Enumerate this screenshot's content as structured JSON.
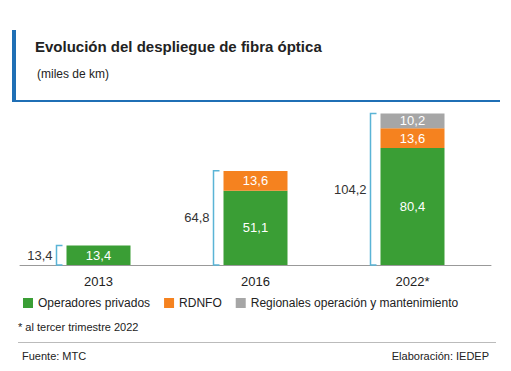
{
  "chart_data": {
    "type": "bar",
    "title": "Evolución del despliegue de fibra óptica",
    "subtitle": "(miles de km)",
    "categories": [
      "2013",
      "2016",
      "2022*"
    ],
    "series": [
      {
        "name": "Operadores privados",
        "color": "#3a9e35",
        "values": [
          13.4,
          51.1,
          80.4
        ],
        "value_labels": [
          "13,4",
          "51,1",
          "80,4"
        ]
      },
      {
        "name": "RDNFO",
        "color": "#f5821f",
        "values": [
          null,
          13.6,
          13.6
        ],
        "value_labels": [
          null,
          "13,6",
          "13,6"
        ]
      },
      {
        "name": "Regionales operación y mantenimiento",
        "color": "#a6a6a6",
        "values": [
          null,
          null,
          10.2
        ],
        "value_labels": [
          null,
          null,
          "10,2"
        ]
      }
    ],
    "totals": [
      13.4,
      64.8,
      104.2
    ],
    "total_labels": [
      "13,4",
      "64,8",
      "104,2"
    ],
    "stacked": true,
    "data_labels": true,
    "tick_labels": "x",
    "grid": false,
    "legend": "bottom",
    "ylim": [
      0,
      110
    ],
    "note": "* al tercer trimestre 2022",
    "source": "Fuente: MTC",
    "credit": "Elaboración: IEDEP"
  }
}
